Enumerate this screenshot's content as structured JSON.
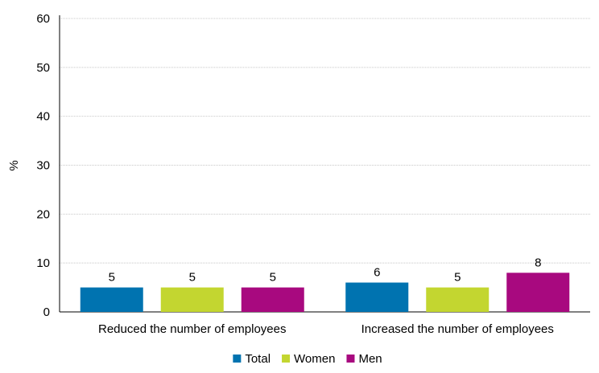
{
  "chart_data": {
    "type": "bar",
    "title": "",
    "xlabel": "",
    "ylabel": "%",
    "ylim": [
      0,
      60
    ],
    "yticks": [
      0,
      10,
      20,
      30,
      40,
      50,
      60
    ],
    "grid": true,
    "legend_position": "bottom-center",
    "categories": [
      "Reduced the number of employees",
      "Increased the number of employees"
    ],
    "series": [
      {
        "name": "Total",
        "color": "#0073b0",
        "values": [
          5,
          6
        ],
        "labels": [
          "5",
          "6"
        ]
      },
      {
        "name": "Women",
        "color": "#c3d630",
        "values": [
          5,
          5
        ],
        "labels": [
          "5",
          "5"
        ]
      },
      {
        "name": "Men",
        "color": "#a8097f",
        "values": [
          5,
          8
        ],
        "labels": [
          "5",
          "8"
        ]
      }
    ]
  }
}
